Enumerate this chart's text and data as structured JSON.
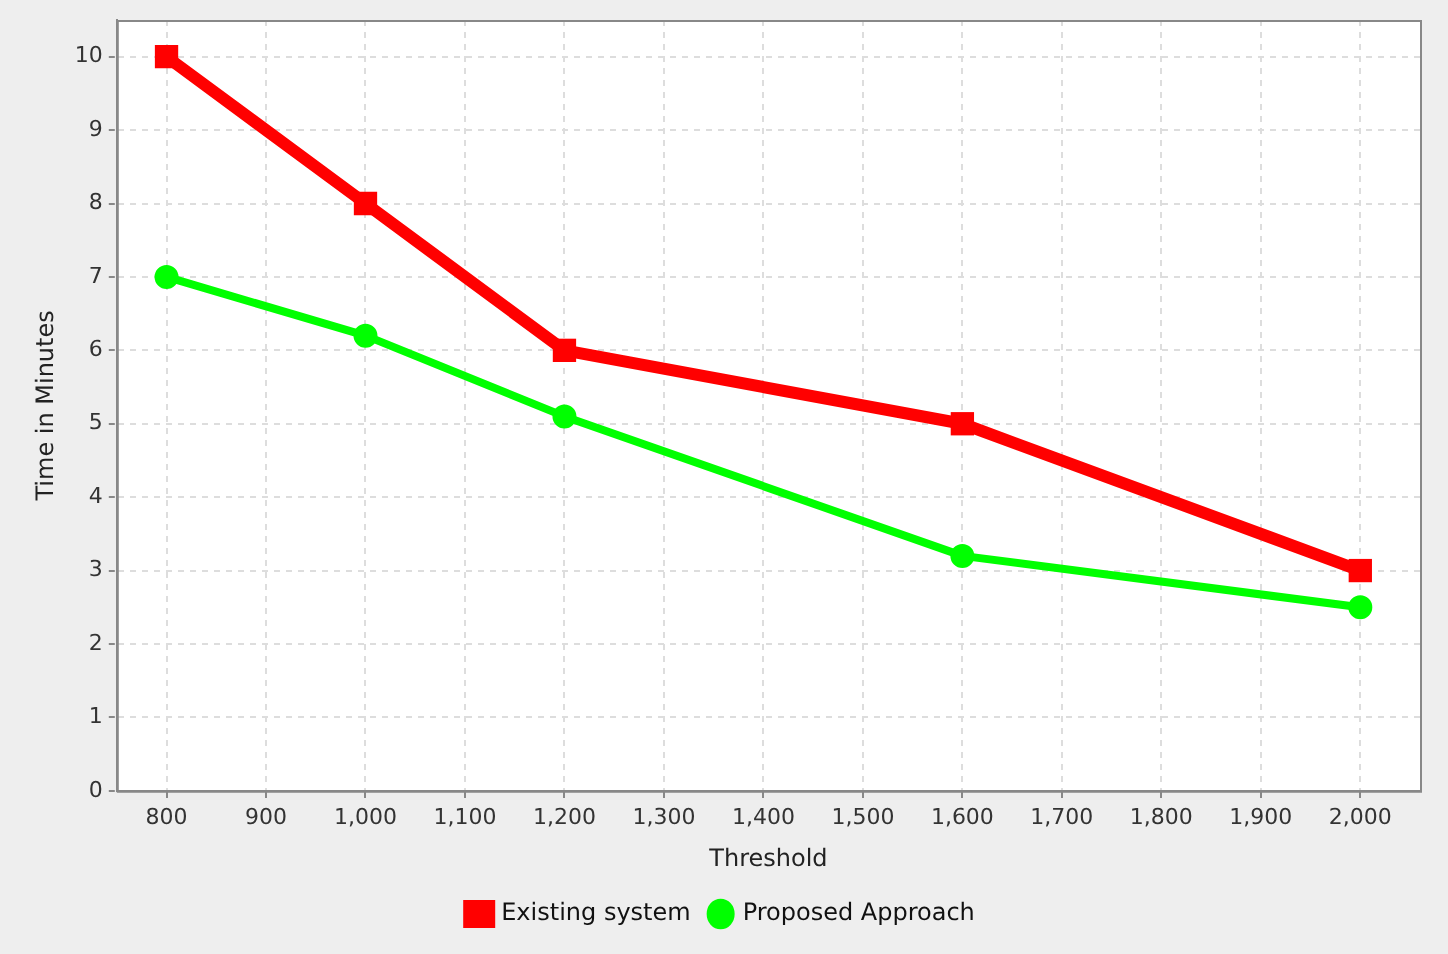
{
  "chart_data": {
    "type": "line",
    "xlabel": "Threshold",
    "ylabel": "Time in Minutes",
    "x": [
      800,
      1000,
      1200,
      1600,
      2000
    ],
    "series": [
      {
        "name": "Existing system",
        "color": "#ff0000",
        "marker": "square",
        "values": [
          10,
          8,
          6,
          5,
          3
        ]
      },
      {
        "name": "Proposed Approach",
        "color": "#00ff00",
        "marker": "circle",
        "values": [
          7,
          6.2,
          5.1,
          3.2,
          2.5
        ]
      }
    ],
    "xlim": [
      750,
      2060
    ],
    "xticks": [
      800,
      900,
      {
        "value": 1000,
        "label": "1,000"
      },
      {
        "value": 1100,
        "label": "1,100"
      },
      {
        "value": 1200,
        "label": "1,200"
      },
      {
        "value": 1300,
        "label": "1,300"
      },
      {
        "value": 1400,
        "label": "1,400"
      },
      {
        "value": 1500,
        "label": "1,500"
      },
      {
        "value": 1600,
        "label": "1,600"
      },
      {
        "value": 1700,
        "label": "1,700"
      },
      {
        "value": 1800,
        "label": "1,800"
      },
      {
        "value": 1900,
        "label": "1,900"
      },
      {
        "value": 2000,
        "label": "2,000"
      }
    ],
    "ylim": [
      0,
      10.5
    ],
    "yticks": [
      0,
      1,
      2,
      3,
      4,
      5,
      6,
      7,
      8,
      9,
      10
    ],
    "grid": true,
    "legend": "bottom",
    "line_style": "solid"
  }
}
